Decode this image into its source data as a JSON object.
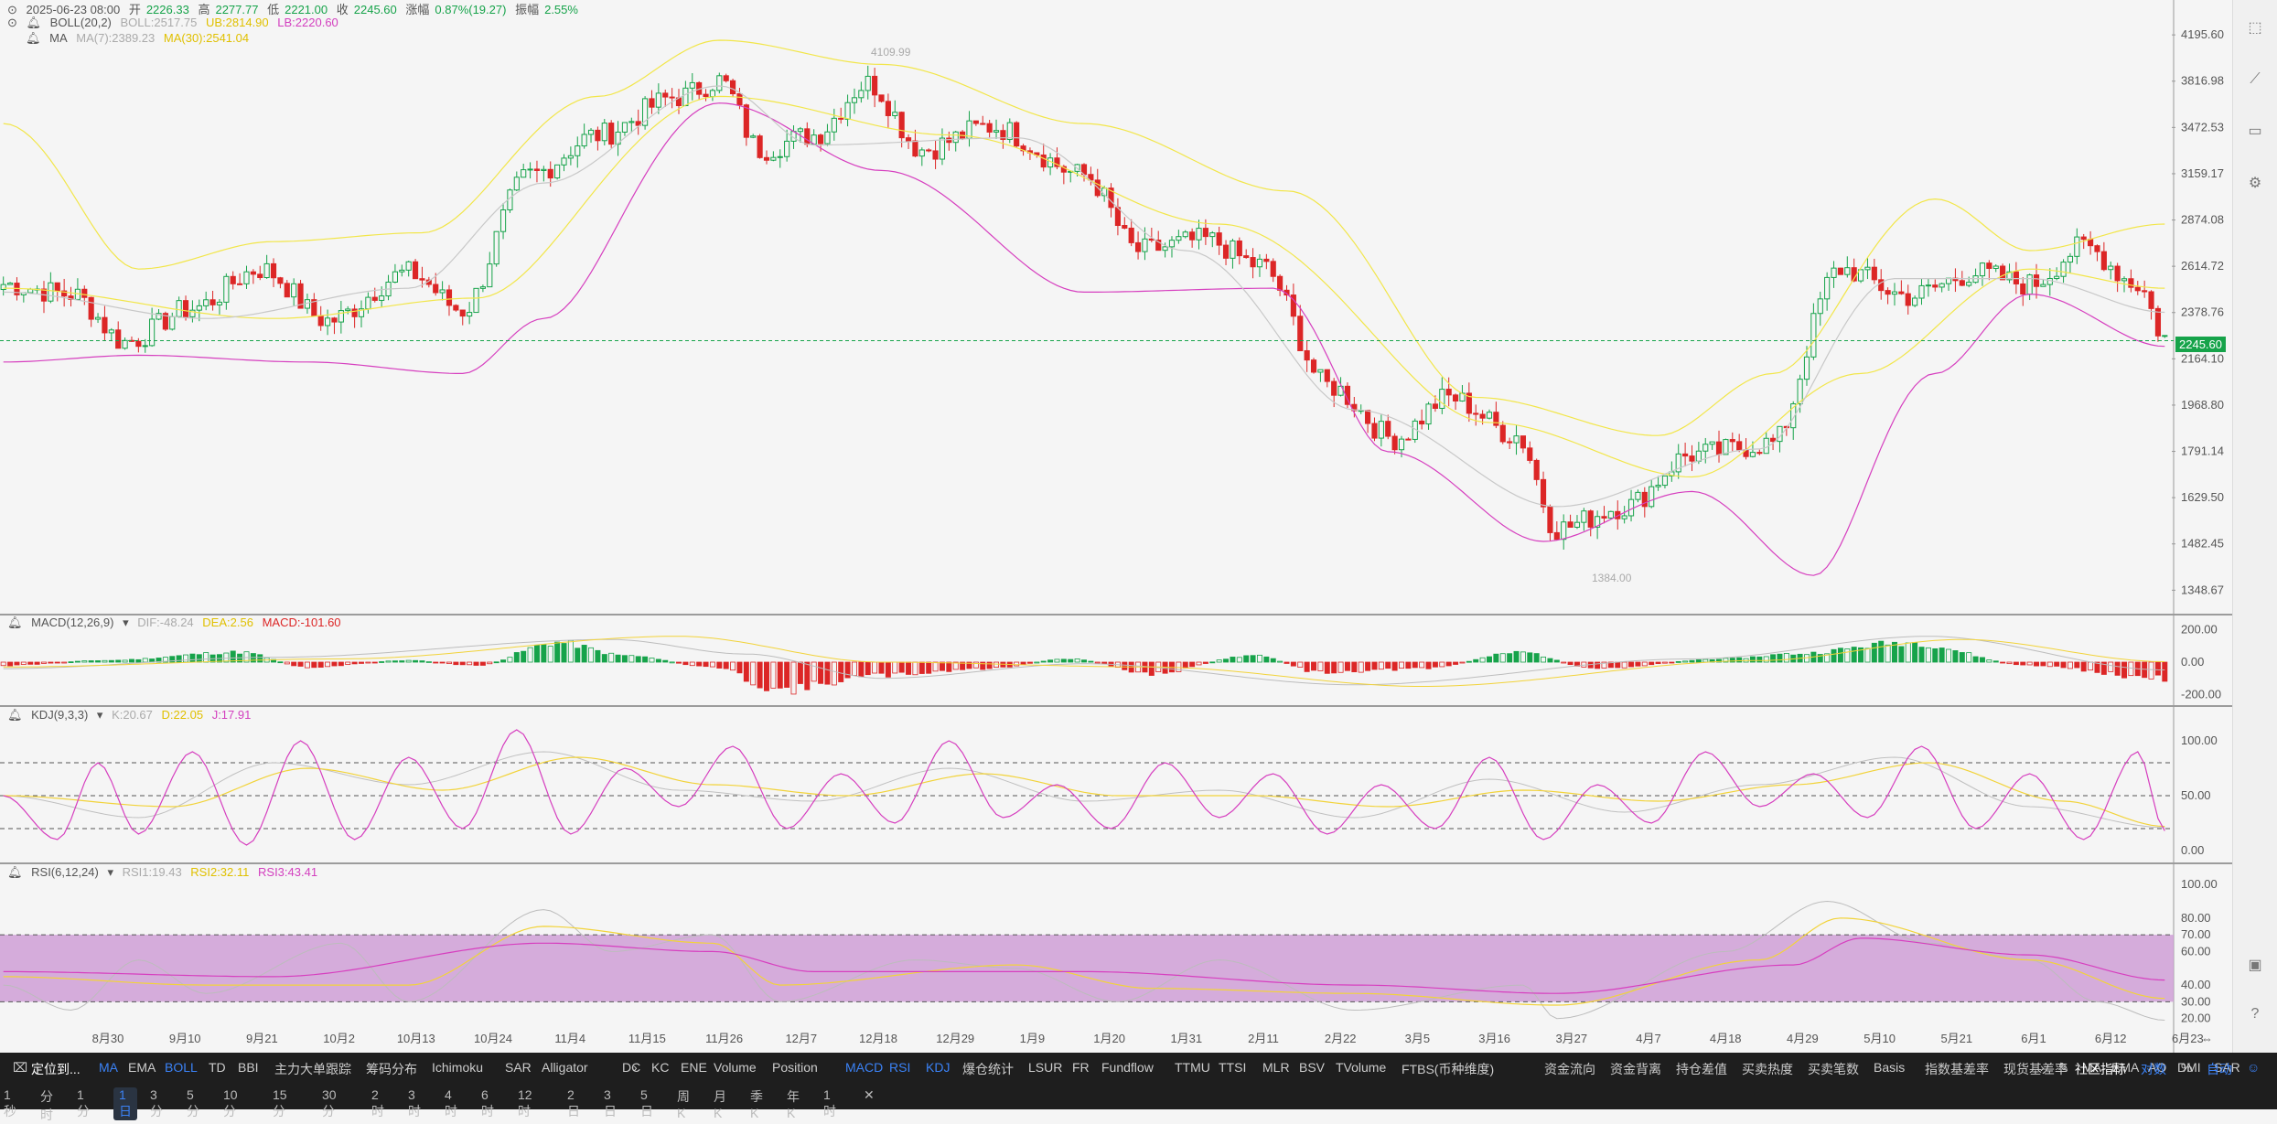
{
  "header": {
    "date": "2025-06-23 08:00",
    "open_label": "开",
    "open": "2226.33",
    "high_label": "高",
    "high": "2277.77",
    "low_label": "低",
    "low": "2221.00",
    "close_label": "收",
    "close": "2245.60",
    "change_label": "涨幅",
    "change": "0.87%(19.27)",
    "amp_label": "振幅",
    "amp": "2.55%"
  },
  "legends": {
    "boll": {
      "name": "BOLL(20,2)",
      "mid": "BOLL:2517.75",
      "ub": "UB:2814.90",
      "lb": "LB:2220.60"
    },
    "ma": {
      "name": "MA",
      "ma7": "MA(7):2389.23",
      "ma30": "MA(30):2541.04"
    },
    "macd": {
      "name": "MACD(12,26,9)",
      "dif": "DIF:-48.24",
      "dea": "DEA:2.56",
      "macd": "MACD:-101.60"
    },
    "kdj": {
      "name": "KDJ(9,3,3)",
      "k": "K:20.67",
      "d": "D:22.05",
      "j": "J:17.91"
    },
    "rsi": {
      "name": "RSI(6,12,24)",
      "r1": "RSI1:19.43",
      "r2": "RSI2:32.11",
      "r3": "RSI3:43.41"
    }
  },
  "annotations": {
    "high": "4109.99",
    "low": "1384.00"
  },
  "price_chip": "2245.60",
  "chart_data": [
    {
      "type": "candlestick",
      "panel": "price",
      "yticks": [
        "4195.60",
        "3816.98",
        "3472.53",
        "3159.17",
        "2874.08",
        "2614.72",
        "2378.76",
        "2164.10",
        "1968.80",
        "1791.14",
        "1629.50",
        "1482.45",
        "1348.67"
      ],
      "ylim": [
        1300,
        4300
      ],
      "log_scale": true,
      "current_price": 2245.6,
      "x_labels": [
        "8月30",
        "9月10",
        "9月21",
        "10月2",
        "10月13",
        "10月24",
        "11月4",
        "11月15",
        "11月26",
        "12月7",
        "12月18",
        "12月29",
        "1月9",
        "1月20",
        "1月31",
        "2月11",
        "2月22",
        "3月5",
        "3月16",
        "3月27",
        "4月7",
        "4月18",
        "4月29",
        "5月10",
        "5月21",
        "6月1",
        "6月12",
        "6月23"
      ],
      "close_keypoints": [
        [
          0,
          2520
        ],
        [
          10,
          2470
        ],
        [
          18,
          2240
        ],
        [
          28,
          2400
        ],
        [
          38,
          2600
        ],
        [
          48,
          2340
        ],
        [
          60,
          2580
        ],
        [
          68,
          2390
        ],
        [
          78,
          3150
        ],
        [
          88,
          3420
        ],
        [
          100,
          3700
        ],
        [
          106,
          3820
        ],
        [
          112,
          3320
        ],
        [
          120,
          3420
        ],
        [
          128,
          3800
        ],
        [
          136,
          3320
        ],
        [
          146,
          3480
        ],
        [
          160,
          3150
        ],
        [
          168,
          2700
        ],
        [
          178,
          2760
        ],
        [
          186,
          2620
        ],
        [
          196,
          2050
        ],
        [
          206,
          1840
        ],
        [
          214,
          2000
        ],
        [
          224,
          1850
        ],
        [
          230,
          1530
        ],
        [
          240,
          1600
        ],
        [
          250,
          1780
        ],
        [
          262,
          1820
        ],
        [
          272,
          2600
        ],
        [
          282,
          2460
        ],
        [
          292,
          2580
        ],
        [
          300,
          2520
        ],
        [
          308,
          2720
        ],
        [
          316,
          2520
        ],
        [
          320,
          2260
        ]
      ],
      "boll_upper_keypoints": [
        [
          0,
          3500
        ],
        [
          20,
          2600
        ],
        [
          40,
          2750
        ],
        [
          62,
          2800
        ],
        [
          88,
          3700
        ],
        [
          106,
          4150
        ],
        [
          130,
          3950
        ],
        [
          160,
          3500
        ],
        [
          190,
          3050
        ],
        [
          218,
          2000
        ],
        [
          245,
          1850
        ],
        [
          262,
          2100
        ],
        [
          286,
          3000
        ],
        [
          300,
          2700
        ],
        [
          320,
          2850
        ]
      ],
      "boll_lower_keypoints": [
        [
          0,
          2150
        ],
        [
          20,
          2180
        ],
        [
          45,
          2150
        ],
        [
          68,
          2100
        ],
        [
          80,
          2350
        ],
        [
          106,
          3650
        ],
        [
          130,
          3180
        ],
        [
          160,
          2480
        ],
        [
          188,
          2500
        ],
        [
          205,
          1790
        ],
        [
          228,
          1490
        ],
        [
          250,
          1650
        ],
        [
          268,
          1390
        ],
        [
          286,
          2100
        ],
        [
          300,
          2470
        ],
        [
          320,
          2220
        ]
      ],
      "ma30_keypoints": [
        [
          0,
          2500
        ],
        [
          40,
          2350
        ],
        [
          70,
          2450
        ],
        [
          106,
          3700
        ],
        [
          140,
          3420
        ],
        [
          180,
          2850
        ],
        [
          220,
          1900
        ],
        [
          250,
          1700
        ],
        [
          275,
          2100
        ],
        [
          300,
          2600
        ],
        [
          320,
          2500
        ]
      ],
      "ma7_keypoints": [
        [
          0,
          2480
        ],
        [
          30,
          2350
        ],
        [
          60,
          2500
        ],
        [
          80,
          3100
        ],
        [
          106,
          3780
        ],
        [
          120,
          3350
        ],
        [
          150,
          3400
        ],
        [
          175,
          2700
        ],
        [
          200,
          1950
        ],
        [
          230,
          1600
        ],
        [
          260,
          1800
        ],
        [
          280,
          2550
        ],
        [
          300,
          2550
        ],
        [
          320,
          2380
        ]
      ]
    },
    {
      "type": "bar",
      "panel": "macd",
      "yticks": [
        "200.00",
        "0.00",
        "-200.00"
      ],
      "ylim": [
        -260,
        260
      ],
      "histogram_keypoints": [
        [
          0,
          -20
        ],
        [
          15,
          10
        ],
        [
          35,
          60
        ],
        [
          45,
          -30
        ],
        [
          60,
          10
        ],
        [
          70,
          -20
        ],
        [
          82,
          120
        ],
        [
          92,
          40
        ],
        [
          105,
          -30
        ],
        [
          115,
          -170
        ],
        [
          130,
          -80
        ],
        [
          145,
          -40
        ],
        [
          158,
          20
        ],
        [
          170,
          -70
        ],
        [
          185,
          40
        ],
        [
          195,
          -60
        ],
        [
          210,
          -40
        ],
        [
          225,
          60
        ],
        [
          235,
          -40
        ],
        [
          255,
          20
        ],
        [
          265,
          50
        ],
        [
          282,
          120
        ],
        [
          300,
          -20
        ],
        [
          320,
          -100
        ]
      ],
      "dif_keypoints": [
        [
          0,
          -40
        ],
        [
          40,
          30
        ],
        [
          90,
          140
        ],
        [
          110,
          50
        ],
        [
          130,
          -100
        ],
        [
          160,
          -10
        ],
        [
          200,
          -140
        ],
        [
          250,
          20
        ],
        [
          285,
          160
        ],
        [
          320,
          -48
        ]
      ],
      "dea_keypoints": [
        [
          0,
          -30
        ],
        [
          50,
          20
        ],
        [
          100,
          160
        ],
        [
          130,
          0
        ],
        [
          170,
          -30
        ],
        [
          210,
          -150
        ],
        [
          260,
          10
        ],
        [
          290,
          140
        ],
        [
          320,
          3
        ]
      ]
    },
    {
      "type": "line",
      "panel": "kdj",
      "yticks": [
        "100.00",
        "50.00",
        "0.00"
      ],
      "ylim": [
        -10,
        120
      ],
      "guides": [
        80,
        50,
        20
      ],
      "j_keypoints": [
        [
          0,
          50
        ],
        [
          8,
          10
        ],
        [
          14,
          80
        ],
        [
          20,
          15
        ],
        [
          28,
          90
        ],
        [
          36,
          5
        ],
        [
          44,
          100
        ],
        [
          52,
          10
        ],
        [
          60,
          85
        ],
        [
          68,
          20
        ],
        [
          76,
          110
        ],
        [
          84,
          15
        ],
        [
          92,
          75
        ],
        [
          100,
          40
        ],
        [
          108,
          95
        ],
        [
          116,
          20
        ],
        [
          124,
          70
        ],
        [
          132,
          25
        ],
        [
          140,
          100
        ],
        [
          148,
          30
        ],
        [
          156,
          60
        ],
        [
          164,
          20
        ],
        [
          172,
          80
        ],
        [
          180,
          30
        ],
        [
          188,
          70
        ],
        [
          196,
          15
        ],
        [
          204,
          60
        ],
        [
          212,
          20
        ],
        [
          220,
          85
        ],
        [
          228,
          10
        ],
        [
          236,
          60
        ],
        [
          244,
          25
        ],
        [
          252,
          90
        ],
        [
          260,
          40
        ],
        [
          268,
          70
        ],
        [
          276,
          30
        ],
        [
          284,
          95
        ],
        [
          292,
          20
        ],
        [
          300,
          70
        ],
        [
          308,
          10
        ],
        [
          316,
          90
        ],
        [
          320,
          18
        ]
      ],
      "k_keypoints": [
        [
          0,
          50
        ],
        [
          20,
          30
        ],
        [
          40,
          80
        ],
        [
          60,
          60
        ],
        [
          80,
          90
        ],
        [
          100,
          55
        ],
        [
          120,
          45
        ],
        [
          140,
          75
        ],
        [
          160,
          45
        ],
        [
          180,
          55
        ],
        [
          200,
          30
        ],
        [
          220,
          65
        ],
        [
          240,
          35
        ],
        [
          260,
          60
        ],
        [
          280,
          85
        ],
        [
          300,
          40
        ],
        [
          320,
          21
        ]
      ],
      "d_keypoints": [
        [
          0,
          50
        ],
        [
          25,
          40
        ],
        [
          45,
          75
        ],
        [
          65,
          55
        ],
        [
          85,
          85
        ],
        [
          105,
          60
        ],
        [
          125,
          50
        ],
        [
          145,
          70
        ],
        [
          165,
          50
        ],
        [
          185,
          50
        ],
        [
          205,
          40
        ],
        [
          225,
          55
        ],
        [
          245,
          45
        ],
        [
          265,
          60
        ],
        [
          285,
          80
        ],
        [
          305,
          45
        ],
        [
          320,
          22
        ]
      ]
    },
    {
      "type": "line",
      "panel": "rsi",
      "yticks": [
        "100.00",
        "80.00",
        "70.00",
        "60.00",
        "40.00",
        "30.00",
        "20.00"
      ],
      "ylim": [
        10,
        105
      ],
      "band": [
        30,
        70
      ],
      "rsi1_keypoints": [
        [
          0,
          40
        ],
        [
          10,
          25
        ],
        [
          20,
          55
        ],
        [
          30,
          35
        ],
        [
          50,
          65
        ],
        [
          60,
          30
        ],
        [
          80,
          85
        ],
        [
          90,
          60
        ],
        [
          105,
          70
        ],
        [
          115,
          30
        ],
        [
          135,
          55
        ],
        [
          150,
          50
        ],
        [
          165,
          30
        ],
        [
          180,
          55
        ],
        [
          200,
          25
        ],
        [
          225,
          40
        ],
        [
          230,
          20
        ],
        [
          255,
          60
        ],
        [
          270,
          90
        ],
        [
          285,
          65
        ],
        [
          300,
          55
        ],
        [
          310,
          30
        ],
        [
          320,
          19
        ]
      ],
      "rsi2_keypoints": [
        [
          0,
          45
        ],
        [
          30,
          40
        ],
        [
          60,
          40
        ],
        [
          80,
          75
        ],
        [
          105,
          65
        ],
        [
          115,
          40
        ],
        [
          150,
          52
        ],
        [
          170,
          38
        ],
        [
          200,
          35
        ],
        [
          230,
          28
        ],
        [
          260,
          55
        ],
        [
          272,
          80
        ],
        [
          300,
          55
        ],
        [
          320,
          32
        ]
      ],
      "rsi3_keypoints": [
        [
          0,
          48
        ],
        [
          40,
          45
        ],
        [
          80,
          65
        ],
        [
          105,
          60
        ],
        [
          120,
          48
        ],
        [
          160,
          48
        ],
        [
          200,
          40
        ],
        [
          230,
          35
        ],
        [
          265,
          52
        ],
        [
          275,
          68
        ],
        [
          300,
          58
        ],
        [
          320,
          43
        ]
      ]
    }
  ],
  "indicator_tabs": [
    "MA",
    "EMA",
    "BOLL",
    "TD",
    "BBI",
    "主力大单跟踪",
    "筹码分布",
    "Ichimoku",
    "SAR",
    "Alligator",
    "DC",
    "KC",
    "ENE"
  ],
  "indicator_tabs_on": [
    "MA",
    "BOLL"
  ],
  "sub_tabs": [
    "Volume",
    "Position",
    "MACD",
    "RSI",
    "KDJ",
    "爆仓统计",
    "LSUR",
    "FR",
    "Fundflow",
    "TTMU",
    "TTSI",
    "MLR",
    "BSV",
    "TVolume",
    "FTBS(币种维度)",
    "资金流向",
    "资金背离",
    "持仓差值",
    "买卖热度",
    "买卖笔数",
    "Basis",
    "指数基差率",
    "现货基差率",
    "MA",
    "EMA",
    "AO",
    "DMI",
    "SAR"
  ],
  "sub_tabs_on": [
    "MACD",
    "RSI",
    "KDJ"
  ],
  "locate_label": "定位到...",
  "right_labels": {
    "community": "社区指标",
    "log": "对数",
    "pct": "%",
    "auto": "自动"
  },
  "timeframes": [
    "1秒",
    "分时",
    "1分",
    "1日",
    "3分",
    "5分",
    "10分",
    "15分",
    "30分",
    "2时",
    "3时",
    "4时",
    "6时",
    "12时",
    "2日",
    "3日",
    "5日",
    "周K",
    "月K",
    "季K",
    "年K",
    "1时"
  ],
  "timeframe_on": "1日",
  "colors": {
    "up": "#16a34a",
    "down": "#dc2626",
    "boll_ub": "#f2e64a",
    "boll_mid": "#b9b9b9",
    "boll_lb": "#d63fbf",
    "ma7": "#c8c8c8",
    "ma30": "#f2e64a",
    "kdj_k": "#c0c0c0",
    "kdj_d": "#f2d33a",
    "kdj_j": "#d63fbf",
    "rsi_band": "#cf9fd6"
  }
}
